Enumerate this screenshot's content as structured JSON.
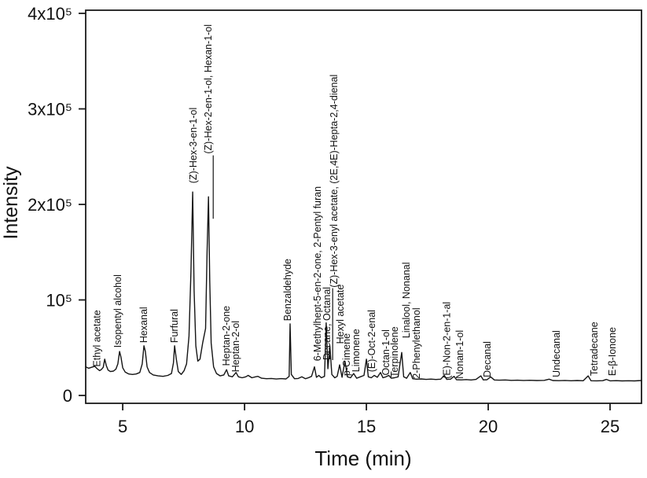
{
  "figure": {
    "kind": "gc-chromatogram",
    "background_color": "#ffffff",
    "line_color": "#141414",
    "axis_color": "#1a1a1a"
  },
  "chart_data": {
    "type": "line",
    "title": "",
    "xlabel": "Time (min)",
    "ylabel": "Intensity",
    "grid": false,
    "legend": "none",
    "x_axis": {
      "min": 3.48,
      "max": 26.29,
      "ticks": [
        5,
        10,
        15,
        20,
        25
      ],
      "tick_labels": [
        "5",
        "10",
        "15",
        "20",
        "25"
      ]
    },
    "y_axis": {
      "min": 0,
      "max": 400000,
      "ticks": [
        0,
        100000,
        200000,
        300000,
        400000
      ],
      "tick_labels": [
        "0",
        "10⁵",
        "2x10⁵",
        "3x10⁵",
        "4x10⁵"
      ]
    },
    "trace": [
      [
        3.48,
        30000
      ],
      [
        3.6,
        28500
      ],
      [
        3.72,
        29500
      ],
      [
        3.85,
        30500
      ],
      [
        3.95,
        28000
      ],
      [
        4.05,
        26000
      ],
      [
        4.12,
        27000
      ],
      [
        4.2,
        29500
      ],
      [
        4.26,
        38000
      ],
      [
        4.33,
        31000
      ],
      [
        4.4,
        26500
      ],
      [
        4.5,
        25000
      ],
      [
        4.62,
        25500
      ],
      [
        4.72,
        27500
      ],
      [
        4.8,
        33000
      ],
      [
        4.87,
        46000
      ],
      [
        4.93,
        40000
      ],
      [
        5.0,
        29000
      ],
      [
        5.1,
        24500
      ],
      [
        5.25,
        22500
      ],
      [
        5.4,
        22000
      ],
      [
        5.55,
        22500
      ],
      [
        5.7,
        24000
      ],
      [
        5.8,
        33000
      ],
      [
        5.87,
        52000
      ],
      [
        5.93,
        46000
      ],
      [
        6.0,
        30000
      ],
      [
        6.1,
        24000
      ],
      [
        6.25,
        21500
      ],
      [
        6.45,
        20500
      ],
      [
        6.65,
        20000
      ],
      [
        6.85,
        21000
      ],
      [
        7.0,
        23000
      ],
      [
        7.08,
        34000
      ],
      [
        7.13,
        52000
      ],
      [
        7.2,
        38000
      ],
      [
        7.28,
        25000
      ],
      [
        7.4,
        22000
      ],
      [
        7.52,
        26000
      ],
      [
        7.62,
        33000
      ],
      [
        7.72,
        62000
      ],
      [
        7.8,
        130000
      ],
      [
        7.87,
        213000
      ],
      [
        7.93,
        110000
      ],
      [
        8.0,
        52000
      ],
      [
        8.08,
        36000
      ],
      [
        8.17,
        38000
      ],
      [
        8.28,
        55000
      ],
      [
        8.4,
        70000
      ],
      [
        8.46,
        150000
      ],
      [
        8.52,
        208000
      ],
      [
        8.57,
        120000
      ],
      [
        8.63,
        55000
      ],
      [
        8.73,
        30000
      ],
      [
        8.85,
        23000
      ],
      [
        9.0,
        20500
      ],
      [
        9.15,
        21500
      ],
      [
        9.26,
        27000
      ],
      [
        9.35,
        20500
      ],
      [
        9.5,
        19500
      ],
      [
        9.65,
        24000
      ],
      [
        9.75,
        19500
      ],
      [
        9.9,
        18500
      ],
      [
        10.05,
        19500
      ],
      [
        10.15,
        21000
      ],
      [
        10.3,
        18500
      ],
      [
        10.45,
        19500
      ],
      [
        10.55,
        20000
      ],
      [
        10.7,
        18000
      ],
      [
        10.9,
        17500
      ],
      [
        11.1,
        17800
      ],
      [
        11.3,
        17200
      ],
      [
        11.5,
        17600
      ],
      [
        11.7,
        17300
      ],
      [
        11.83,
        20000
      ],
      [
        11.87,
        75000
      ],
      [
        11.92,
        22000
      ],
      [
        12.05,
        17500
      ],
      [
        12.2,
        17800
      ],
      [
        12.35,
        19500
      ],
      [
        12.5,
        17500
      ],
      [
        12.62,
        18500
      ],
      [
        12.75,
        20000
      ],
      [
        12.87,
        30000
      ],
      [
        12.95,
        19000
      ],
      [
        13.05,
        21000
      ],
      [
        13.15,
        18500
      ],
      [
        13.28,
        20000
      ],
      [
        13.35,
        76000
      ],
      [
        13.42,
        28000
      ],
      [
        13.5,
        52000
      ],
      [
        13.58,
        22000
      ],
      [
        13.7,
        18500
      ],
      [
        13.8,
        20000
      ],
      [
        13.9,
        32000
      ],
      [
        14.0,
        19000
      ],
      [
        14.12,
        36000
      ],
      [
        14.22,
        19500
      ],
      [
        14.35,
        18500
      ],
      [
        14.48,
        23000
      ],
      [
        14.6,
        18000
      ],
      [
        14.75,
        19500
      ],
      [
        14.9,
        21000
      ],
      [
        15.0,
        38000
      ],
      [
        15.08,
        19500
      ],
      [
        15.2,
        18500
      ],
      [
        15.32,
        21000
      ],
      [
        15.45,
        19000
      ],
      [
        15.58,
        24000
      ],
      [
        15.68,
        18500
      ],
      [
        15.8,
        19500
      ],
      [
        15.92,
        21000
      ],
      [
        16.02,
        18000
      ],
      [
        16.15,
        18500
      ],
      [
        16.3,
        19500
      ],
      [
        16.45,
        45000
      ],
      [
        16.53,
        19500
      ],
      [
        16.65,
        18000
      ],
      [
        16.8,
        24000
      ],
      [
        16.9,
        17500
      ],
      [
        17.05,
        17000
      ],
      [
        17.25,
        17300
      ],
      [
        17.45,
        16800
      ],
      [
        17.65,
        17100
      ],
      [
        17.85,
        16700
      ],
      [
        18.05,
        17000
      ],
      [
        18.2,
        21000
      ],
      [
        18.3,
        16800
      ],
      [
        18.45,
        17000
      ],
      [
        18.6,
        20000
      ],
      [
        18.7,
        16500
      ],
      [
        18.9,
        16300
      ],
      [
        19.1,
        16600
      ],
      [
        19.3,
        16200
      ],
      [
        19.5,
        16800
      ],
      [
        19.7,
        20500
      ],
      [
        19.8,
        16300
      ],
      [
        19.95,
        16500
      ],
      [
        20.1,
        19500
      ],
      [
        20.25,
        16200
      ],
      [
        20.45,
        16000
      ],
      [
        20.7,
        16200
      ],
      [
        20.95,
        15800
      ],
      [
        21.2,
        16000
      ],
      [
        21.45,
        15700
      ],
      [
        21.7,
        15900
      ],
      [
        22.0,
        15600
      ],
      [
        22.3,
        15800
      ],
      [
        22.5,
        17000
      ],
      [
        22.65,
        15600
      ],
      [
        22.9,
        15500
      ],
      [
        23.15,
        15700
      ],
      [
        23.4,
        15400
      ],
      [
        23.65,
        15600
      ],
      [
        23.9,
        15400
      ],
      [
        24.1,
        20500
      ],
      [
        24.22,
        15400
      ],
      [
        24.45,
        15300
      ],
      [
        24.7,
        15500
      ],
      [
        24.85,
        16800
      ],
      [
        25.0,
        15300
      ],
      [
        25.25,
        15500
      ],
      [
        25.5,
        15200
      ],
      [
        25.75,
        15400
      ],
      [
        26.0,
        15200
      ],
      [
        26.29,
        15600
      ]
    ],
    "peak_labels": [
      {
        "text": "Ethyl acetate",
        "t": 3.94,
        "base": 30000
      },
      {
        "text": "Isopentyl alcohol",
        "t": 4.81,
        "base": 50000
      },
      {
        "text": "Hexanal",
        "t": 5.87,
        "base": 55000
      },
      {
        "text": "Furfural",
        "t": 7.13,
        "base": 55000
      },
      {
        "text": "(Z)-Hex-3-en-1-ol",
        "t": 7.9,
        "base": 222000
      },
      {
        "text": "(Z)-Hex-2-en-1-ol, Hexan-1-ol",
        "t": 8.52,
        "base": 253000,
        "leader_to": 185000
      },
      {
        "text": "Heptan-2-one",
        "t": 9.26,
        "base": 31000
      },
      {
        "text": "Heptan-2-ol",
        "t": 9.65,
        "base": 24500
      },
      {
        "text": "Benzaldehyde",
        "t": 11.78,
        "base": 78000
      },
      {
        "text": "6-Methylhept-5-en-2-one, 2-Pentyl furan",
        "t": 13.0,
        "base": 36000
      },
      {
        "text": "Decane, Octanal",
        "t": 13.39,
        "base": 37000,
        "underline": true
      },
      {
        "text": "(Z)-Hex-3-enyl acetate, (2E,4E)-Hepta-2,4-dienal",
        "t": 13.68,
        "base": 113000
      },
      {
        "text": "Hexyl acetate",
        "t": 13.94,
        "base": 54000
      },
      {
        "text": "p-Cimene",
        "t": 14.19,
        "base": 20500
      },
      {
        "text": "Limonene",
        "t": 14.58,
        "base": 24500
      },
      {
        "text": "(E)-Oct-2-enal",
        "t": 15.23,
        "base": 24500
      },
      {
        "text": "Octan-1-ol",
        "t": 15.8,
        "base": 21000
      },
      {
        "text": "Terpinolene",
        "t": 16.16,
        "base": 19000
      },
      {
        "text": "Linalool, Nonanal",
        "t": 16.65,
        "base": 60000
      },
      {
        "text": "2-Phenylethanol",
        "t": 17.06,
        "base": 17500
      },
      {
        "text": "(E)-Non-2-en-1-al",
        "t": 18.3,
        "base": 17500
      },
      {
        "text": "Nonan-1-ol",
        "t": 18.84,
        "base": 17500
      },
      {
        "text": "Decanal",
        "t": 19.97,
        "base": 19000
      },
      {
        "text": "Undecanal",
        "t": 22.81,
        "base": 19000
      },
      {
        "text": "Tetradecane",
        "t": 24.35,
        "base": 20500
      },
      {
        "text": "E-β-Ionone",
        "t": 25.1,
        "base": 20500
      }
    ]
  }
}
